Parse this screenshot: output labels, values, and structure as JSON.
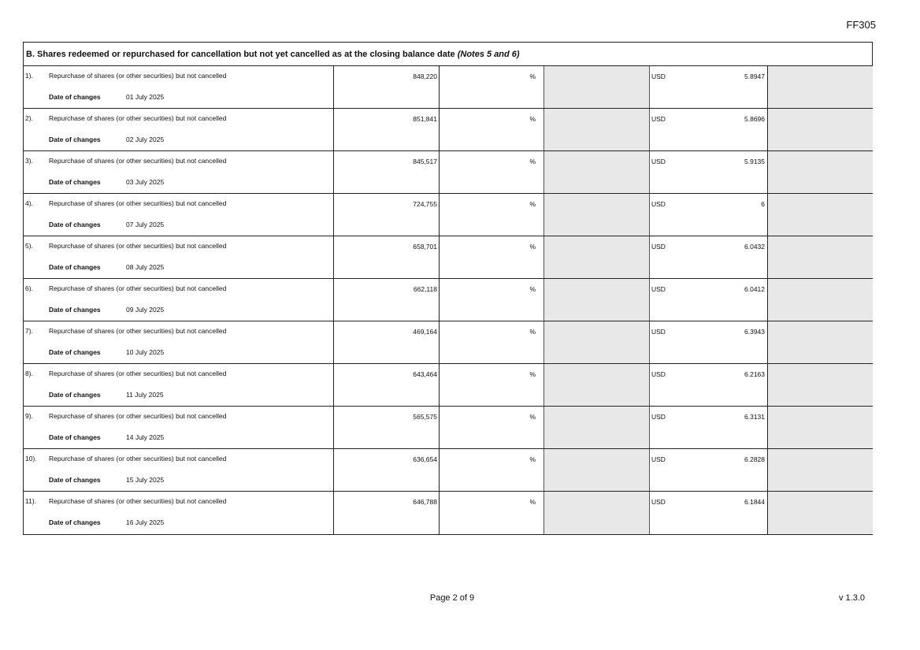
{
  "form_code": "FF305",
  "section": {
    "title": "B. Shares redeemed or repurchased for cancellation but not yet cancelled as at the closing balance date",
    "notes": "(Notes 5 and 6)"
  },
  "date_label": "Date of changes",
  "rows": [
    {
      "num": "1).",
      "desc": "Repurchase of shares (or other securities) but not cancelled",
      "qty": "848,220",
      "pct": "%",
      "currency": "USD",
      "price": "5.8947",
      "date": "01 July 2025"
    },
    {
      "num": "2).",
      "desc": "Repurchase of shares (or other securities) but not cancelled",
      "qty": "851,841",
      "pct": "%",
      "currency": "USD",
      "price": "5.8696",
      "date": "02 July 2025"
    },
    {
      "num": "3).",
      "desc": "Repurchase of shares (or other securities) but not cancelled",
      "qty": "845,517",
      "pct": "%",
      "currency": "USD",
      "price": "5.9135",
      "date": "03 July 2025"
    },
    {
      "num": "4).",
      "desc": "Repurchase of shares (or other securities) but not cancelled",
      "qty": "724,755",
      "pct": "%",
      "currency": "USD",
      "price": "6",
      "date": "07 July 2025"
    },
    {
      "num": "5).",
      "desc": "Repurchase of shares (or other securities) but not cancelled",
      "qty": "658,701",
      "pct": "%",
      "currency": "USD",
      "price": "6.0432",
      "date": "08 July 2025"
    },
    {
      "num": "6).",
      "desc": "Repurchase of shares (or other securities) but not cancelled",
      "qty": "662,118",
      "pct": "%",
      "currency": "USD",
      "price": "6.0412",
      "date": "09 July 2025"
    },
    {
      "num": "7).",
      "desc": "Repurchase of shares (or other securities) but not cancelled",
      "qty": "469,164",
      "pct": "%",
      "currency": "USD",
      "price": "6.3943",
      "date": "10 July 2025"
    },
    {
      "num": "8).",
      "desc": "Repurchase of shares (or other securities) but not cancelled",
      "qty": "643,464",
      "pct": "%",
      "currency": "USD",
      "price": "6.2163",
      "date": "11 July 2025"
    },
    {
      "num": "9).",
      "desc": "Repurchase of shares (or other securities) but not cancelled",
      "qty": "565,575",
      "pct": "%",
      "currency": "USD",
      "price": "6.3131",
      "date": "14 July 2025"
    },
    {
      "num": "10).",
      "desc": "Repurchase of shares (or other securities) but not cancelled",
      "qty": "636,654",
      "pct": "%",
      "currency": "USD",
      "price": "6.2828",
      "date": "15 July 2025"
    },
    {
      "num": "11).",
      "desc": "Repurchase of shares (or other securities) but not cancelled",
      "qty": "646,788",
      "pct": "%",
      "currency": "USD",
      "price": "6.1844",
      "date": "16 July 2025"
    }
  ],
  "footer": {
    "page": "Page 2 of 9",
    "version": "v 1.3.0"
  }
}
